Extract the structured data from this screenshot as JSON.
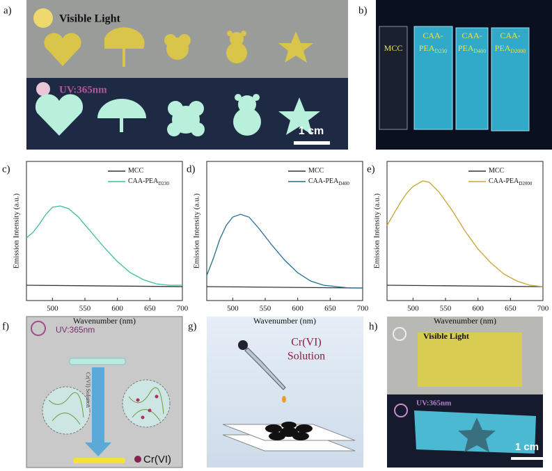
{
  "panel_labels": [
    "a)",
    "b)",
    "c)",
    "d)",
    "e)",
    "f)",
    "g)",
    "h)"
  ],
  "panel_a": {
    "visible": "Visible Light",
    "uv": "UV:365nm",
    "scale": "1 cm"
  },
  "panel_b": {
    "samples": [
      {
        "lines": [
          "MCC"
        ]
      },
      {
        "lines": [
          "CAA-",
          "PEA"
        ],
        "sub": "D230"
      },
      {
        "lines": [
          "CAA-",
          "PEA"
        ],
        "sub": "D400"
      },
      {
        "lines": [
          "CAA-",
          "PEA"
        ],
        "sub": "D2000"
      }
    ]
  },
  "chart_data": [
    {
      "type": "line",
      "xlabel": "Wavenumber (nm)",
      "ylabel": "Emission Intensity (a.u.)",
      "xlim": [
        460,
        700
      ],
      "xticks": [
        500,
        550,
        600,
        650,
        700
      ],
      "ylim": [
        0,
        100
      ],
      "series": [
        {
          "name": "MCC",
          "color": "#333333",
          "x": [
            460,
            700
          ],
          "values": [
            11,
            10
          ]
        },
        {
          "name": "CAA-PEA",
          "name_sub": "D230",
          "color": "#3cbf9a",
          "x": [
            460,
            470,
            480,
            490,
            500,
            512,
            525,
            540,
            560,
            580,
            600,
            620,
            640,
            660,
            680,
            700
          ],
          "values": [
            45,
            49,
            55,
            62,
            67,
            68,
            66,
            60,
            49,
            38,
            28,
            20,
            15,
            12,
            11,
            11
          ]
        }
      ]
    },
    {
      "type": "line",
      "xlabel": "Wavenumber (nm)",
      "ylabel": "Emission Intensity (a.u.)",
      "xlim": [
        460,
        700
      ],
      "xticks": [
        500,
        550,
        600,
        650,
        700
      ],
      "ylim": [
        0,
        100
      ],
      "series": [
        {
          "name": "MCC",
          "color": "#333333",
          "x": [
            460,
            700
          ],
          "values": [
            10,
            9
          ]
        },
        {
          "name": "CAA-PEA",
          "name_sub": "D400",
          "color": "#1f6f8f",
          "x": [
            460,
            470,
            480,
            490,
            500,
            512,
            525,
            540,
            560,
            580,
            600,
            620,
            640,
            660,
            680,
            700
          ],
          "values": [
            18,
            30,
            44,
            54,
            60,
            62,
            60,
            52,
            40,
            29,
            20,
            14,
            11,
            10,
            9,
            9
          ]
        }
      ]
    },
    {
      "type": "line",
      "xlabel": "Wavenumber (nm)",
      "ylabel": "Emission Intensity (a.u.)",
      "xlim": [
        460,
        700
      ],
      "xticks": [
        500,
        550,
        600,
        650,
        700
      ],
      "ylim": [
        0,
        100
      ],
      "series": [
        {
          "name": "MCC",
          "color": "#333333",
          "x": [
            460,
            700
          ],
          "values": [
            11,
            10
          ]
        },
        {
          "name": "CAA-PEA",
          "name_sub": "D2000",
          "color": "#c8a532",
          "x": [
            460,
            470,
            480,
            490,
            500,
            515,
            525,
            540,
            560,
            580,
            600,
            620,
            640,
            660,
            680,
            700
          ],
          "values": [
            54,
            62,
            70,
            77,
            82,
            86,
            85,
            78,
            65,
            50,
            37,
            27,
            19,
            14,
            11,
            10
          ]
        }
      ]
    }
  ],
  "panel_f": {
    "uv": "UV:365nm",
    "arrow": "Cr(VI) Solution",
    "legend": "Cr(VI)"
  },
  "panel_g": {
    "lines": [
      "Cr(VI)",
      "Solution"
    ]
  },
  "panel_h": {
    "visible": "Visible Light",
    "uv": "UV:365nm",
    "scale": "1 cm"
  }
}
